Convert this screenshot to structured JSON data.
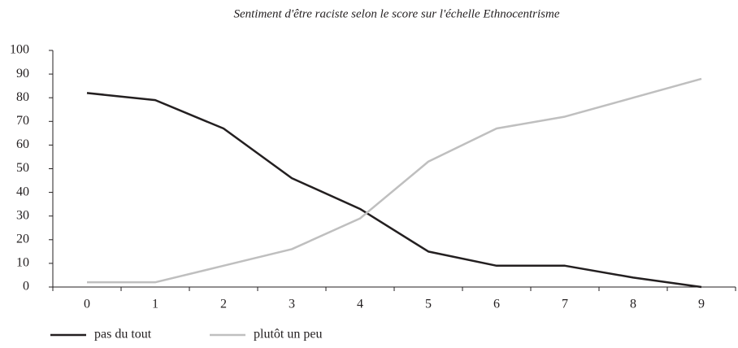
{
  "chart_data": {
    "type": "line",
    "title": "Sentiment d'être raciste selon le score sur l'échelle Ethnocentrisme",
    "categories": [
      "0",
      "1",
      "2",
      "3",
      "4",
      "5",
      "6",
      "7",
      "8",
      "9"
    ],
    "series": [
      {
        "name": "pas du tout",
        "color": "#231f20",
        "values": [
          82,
          79,
          67,
          46,
          33,
          15,
          9,
          9,
          4,
          0
        ]
      },
      {
        "name": "plutôt un peu",
        "color": "#bfbfbf",
        "values": [
          2,
          2,
          9,
          16,
          29,
          53,
          67,
          72,
          80,
          88
        ]
      }
    ],
    "ylim": [
      0,
      100
    ],
    "yticks": [
      0,
      10,
      20,
      30,
      40,
      50,
      60,
      70,
      80,
      90,
      100
    ]
  }
}
